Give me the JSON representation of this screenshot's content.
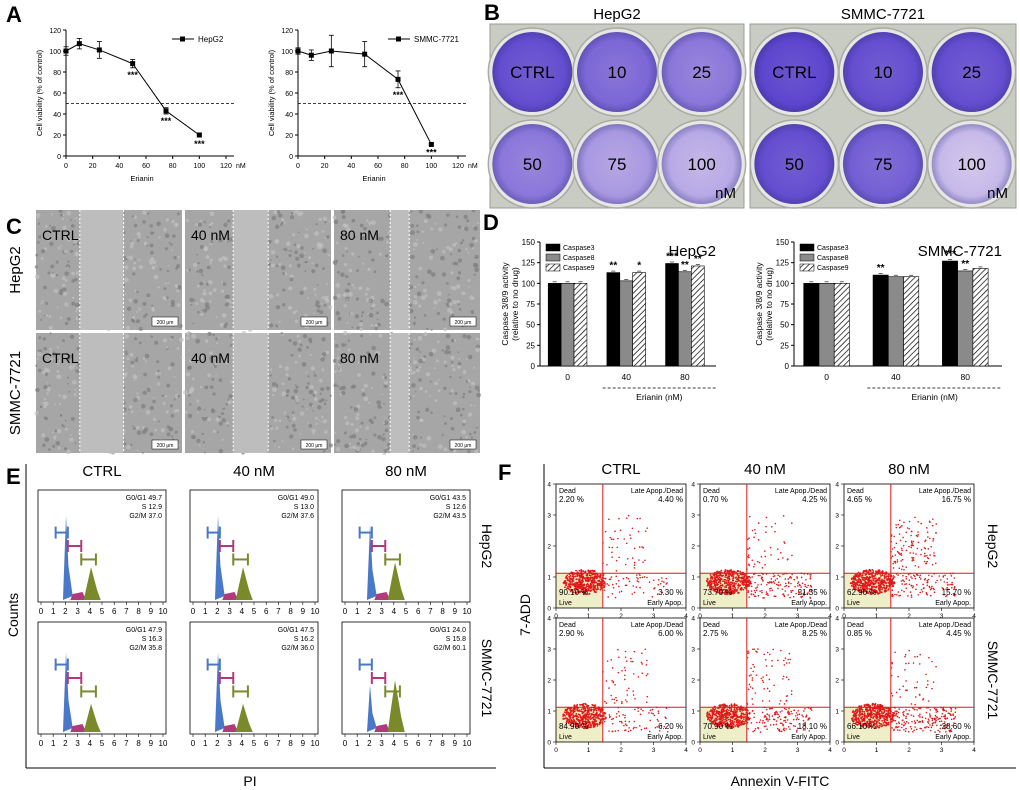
{
  "panels": {
    "a": "A",
    "b": "B",
    "c": "C",
    "d": "D",
    "e": "E",
    "f": "F"
  },
  "panel_a": {
    "charts": [
      {
        "legend": "HepG2",
        "ylabel": "Cell viability (% of control)",
        "xlabel": "Erianin",
        "unit": "nM",
        "x": [
          0,
          10,
          25,
          50,
          75,
          100
        ],
        "y": [
          100,
          107,
          101,
          88,
          43,
          20
        ],
        "err": [
          4,
          5,
          8,
          4,
          3,
          2
        ],
        "stars": [
          "",
          "",
          "",
          "***",
          "***",
          "***"
        ],
        "xticks": [
          "0",
          "20",
          "40",
          "60",
          "80",
          "100",
          "120"
        ],
        "yticks": [
          "0",
          "20",
          "40",
          "60",
          "80",
          "100",
          "120"
        ],
        "xlim": [
          0,
          120
        ],
        "ylim": [
          0,
          120
        ],
        "ref": 50
      },
      {
        "legend": "SMMC-7721",
        "ylabel": "Cell viability (% of control)",
        "xlabel": "Erianin",
        "unit": "nM",
        "x": [
          0,
          10,
          25,
          50,
          75,
          100
        ],
        "y": [
          100,
          96,
          100,
          97,
          73,
          11
        ],
        "err": [
          3,
          5,
          15,
          12,
          8,
          1
        ],
        "stars": [
          "",
          "",
          "",
          "",
          "***",
          "***"
        ],
        "xticks": [
          "0",
          "20",
          "40",
          "60",
          "80",
          "100",
          "120"
        ],
        "yticks": [
          "0",
          "20",
          "40",
          "60",
          "80",
          "100",
          "120"
        ],
        "xlim": [
          0,
          120
        ],
        "ylim": [
          0,
          120
        ],
        "ref": 50
      }
    ]
  },
  "panel_b": {
    "plates": [
      {
        "title": "HepG2",
        "wells": [
          "CTRL",
          "10",
          "25",
          "50",
          "75",
          "100"
        ],
        "intensity": [
          0.8,
          0.65,
          0.55,
          0.55,
          0.35,
          0.25
        ],
        "unit": "nM"
      },
      {
        "title": "SMMC-7721",
        "wells": [
          "CTRL",
          "10",
          "25",
          "50",
          "75",
          "100"
        ],
        "intensity": [
          0.85,
          0.8,
          0.8,
          0.8,
          0.7,
          0.15
        ],
        "unit": "nM"
      }
    ]
  },
  "panel_c": {
    "row_labels": [
      "HepG2",
      "SMMC-7721"
    ],
    "col_labels": [
      "CTRL",
      "40 nM",
      "80 nM"
    ],
    "scale": "200 μm",
    "gap_fraction": [
      0.3,
      0.24,
      0.13
    ]
  },
  "panel_d": {
    "charts": [
      {
        "title": "HepG2",
        "ylabel_1": "Caspase 3/8/9 activity",
        "ylabel_2": "(relative to no drug)",
        "categories": [
          "0",
          "40",
          "80"
        ],
        "xlabel": "Erianin (nM)",
        "series": [
          {
            "name": "Caspase3",
            "values": [
              100,
              113,
              124
            ]
          },
          {
            "name": "Caspase8",
            "values": [
              100,
              103,
              114
            ]
          },
          {
            "name": "Caspase9",
            "values": [
              100,
              113,
              121
            ]
          }
        ],
        "stars": [
          [
            "",
            "",
            ""
          ],
          [
            "**",
            "",
            "*"
          ],
          [
            "***",
            "**",
            "**"
          ]
        ],
        "yticks": [
          "0",
          "25",
          "50",
          "75",
          "100",
          "125",
          "150"
        ],
        "ylim": [
          0,
          150
        ]
      },
      {
        "title": "SMMC-7721",
        "ylabel_1": "Caspase 3/8/9 activity",
        "ylabel_2": "(relative to no drug)",
        "categories": [
          "0",
          "40",
          "80"
        ],
        "xlabel": "Erianin (nM)",
        "series": [
          {
            "name": "Caspase3",
            "values": [
              100,
              110,
              127
            ]
          },
          {
            "name": "Caspase8",
            "values": [
              100,
              108,
              115
            ]
          },
          {
            "name": "Caspase9",
            "values": [
              100,
              108,
              118
            ]
          }
        ],
        "stars": [
          [
            "",
            "",
            ""
          ],
          [
            "**",
            "",
            ""
          ],
          [
            "***",
            "**",
            ""
          ]
        ],
        "yticks": [
          "0",
          "25",
          "50",
          "75",
          "100",
          "125",
          "150"
        ],
        "ylim": [
          0,
          150
        ]
      }
    ]
  },
  "panel_e": {
    "col_labels": [
      "CTRL",
      "40 nM",
      "80 nM"
    ],
    "row_labels": [
      "HepG2",
      "SMMC-7721"
    ],
    "ylabel": "Counts",
    "xlabel": "PI",
    "xticks": [
      "0",
      "1",
      "2",
      "3",
      "4",
      "5",
      "6",
      "7",
      "8",
      "9",
      "10"
    ],
    "cells": [
      [
        [
          "G0/G1 49.7",
          "S 12.9",
          "G2/M 37.0"
        ],
        [
          "G0/G1 49.0",
          "S 13.0",
          "G2/M 37.6"
        ],
        [
          "G0/G1 43.5",
          "S 12.6",
          "G2/M 43.5"
        ]
      ],
      [
        [
          "G0/G1 47.9",
          "S 16.3",
          "G2/M 35.8"
        ],
        [
          "G0/G1 47.5",
          "S 16.2",
          "G2/M 36.0"
        ],
        [
          "G0/G1 24.0",
          "S 15.8",
          "G2/M 60.1"
        ]
      ]
    ],
    "g1_peak": [
      [
        0.9,
        0.9,
        0.8
      ],
      [
        0.85,
        0.85,
        0.5
      ]
    ],
    "g2_peak": [
      [
        0.35,
        0.35,
        0.4
      ],
      [
        0.3,
        0.3,
        0.55
      ]
    ]
  },
  "panel_f": {
    "col_labels": [
      "CTRL",
      "40 nM",
      "80 nM"
    ],
    "row_labels": [
      "HepG2",
      "SMMC-7721"
    ],
    "ylabel": "7-ADD",
    "xlabel": "Annexin V-FITC",
    "q_names": {
      "dead": "Dead",
      "late": "Late Apop./Dead",
      "live": "Live",
      "early": "Early Apop."
    },
    "xticks": [
      "0",
      "1",
      "2",
      "3",
      "4"
    ],
    "cells": [
      [
        {
          "dead": "2.20 %",
          "late": "4.40 %",
          "live": "90.10 %",
          "early": "3.30 %"
        },
        {
          "dead": "0.70 %",
          "late": "4.25 %",
          "live": "73.70 %",
          "early": "21.35 %"
        },
        {
          "dead": "4.65 %",
          "late": "16.75 %",
          "live": "62.90 %",
          "early": "15.70 %"
        }
      ],
      [
        {
          "dead": "2.90 %",
          "late": "6.00 %",
          "live": "84.90 %",
          "early": "6.20 %"
        },
        {
          "dead": "2.75 %",
          "late": "8.25 %",
          "live": "70.90 %",
          "early": "18.10 %"
        },
        {
          "dead": "0.85 %",
          "late": "4.45 %",
          "live": "66.10 %",
          "early": "28.60 %"
        }
      ]
    ]
  }
}
